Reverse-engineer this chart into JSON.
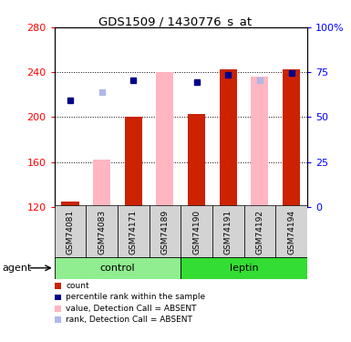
{
  "title": "GDS1509 / 1430776_s_at",
  "samples": [
    "GSM74081",
    "GSM74083",
    "GSM74171",
    "GSM74189",
    "GSM74190",
    "GSM74191",
    "GSM74192",
    "GSM74194"
  ],
  "groups": [
    "control",
    "control",
    "control",
    "control",
    "leptin",
    "leptin",
    "leptin",
    "leptin"
  ],
  "bar_values": [
    125,
    null,
    200,
    null,
    203,
    243,
    null,
    243
  ],
  "bar_absent_values": [
    null,
    162,
    null,
    240,
    null,
    null,
    236,
    null
  ],
  "dot_values": [
    215,
    null,
    233,
    null,
    231,
    238,
    null,
    239
  ],
  "dot_absent_values": [
    null,
    222,
    null,
    null,
    null,
    null,
    233,
    null
  ],
  "ylim_left": [
    120,
    280
  ],
  "ylim_right": [
    0,
    100
  ],
  "yticks_left": [
    120,
    160,
    200,
    240,
    280
  ],
  "yticks_right": [
    0,
    25,
    50,
    75,
    100
  ],
  "bar_color": "#cc2200",
  "bar_absent_color": "#ffb6c1",
  "dot_color": "#00008b",
  "dot_absent_color": "#b0b8e8",
  "control_color": "#90ee90",
  "leptin_color": "#33dd33",
  "legend_items": [
    {
      "label": "count",
      "color": "#cc2200"
    },
    {
      "label": "percentile rank within the sample",
      "color": "#00008b"
    },
    {
      "label": "value, Detection Call = ABSENT",
      "color": "#ffb6c1"
    },
    {
      "label": "rank, Detection Call = ABSENT",
      "color": "#b0b8e8"
    }
  ],
  "bar_bottom": 120,
  "bar_width": 0.55,
  "title_fontsize": 9.5
}
